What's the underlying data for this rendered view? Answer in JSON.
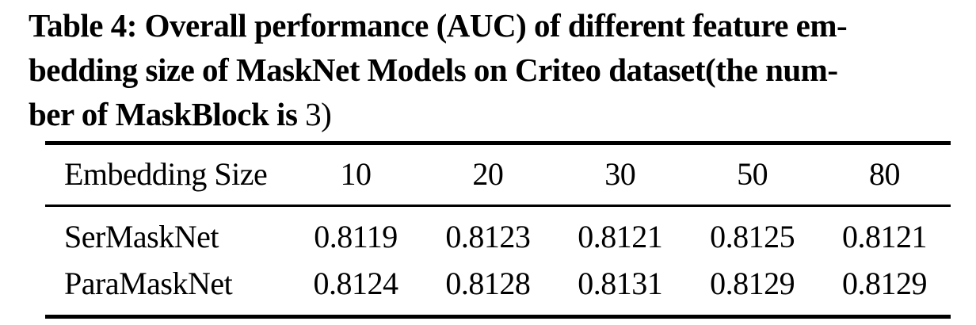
{
  "page": {
    "background_color": "#ffffff",
    "text_color": "#000000"
  },
  "caption": {
    "line1": "Table 4: Overall performance (AUC) of different feature em-",
    "line2": "bedding size of MaskNet Models on Criteo dataset(the num-",
    "line3_bold": "ber of MaskBlock is ",
    "line3_math": "3)"
  },
  "table": {
    "header": {
      "col0": "Embedding Size",
      "col1": "10",
      "col2": "20",
      "col3": "30",
      "col4": "50",
      "col5": "80"
    },
    "rows": [
      {
        "label": "SerMaskNet",
        "v1": "0.8119",
        "v2": "0.8123",
        "v3": "0.8121",
        "v4": "0.8125",
        "v5": "0.8121"
      },
      {
        "label": "ParaMaskNet",
        "v1": "0.8124",
        "v2": "0.8128",
        "v3": "0.8131",
        "v4": "0.8129",
        "v5": "0.8129"
      }
    ]
  },
  "chart_data": {
    "type": "table",
    "title": "Table 4: Overall performance (AUC) of different feature embedding size of MaskNet Models on Criteo dataset (the number of MaskBlock is 3)",
    "xlabel": "Embedding Size",
    "ylabel": "AUC",
    "categories": [
      10,
      20,
      30,
      50,
      80
    ],
    "series": [
      {
        "name": "SerMaskNet",
        "values": [
          0.8119,
          0.8123,
          0.8121,
          0.8125,
          0.8121
        ]
      },
      {
        "name": "ParaMaskNet",
        "values": [
          0.8124,
          0.8128,
          0.8131,
          0.8129,
          0.8129
        ]
      }
    ]
  }
}
